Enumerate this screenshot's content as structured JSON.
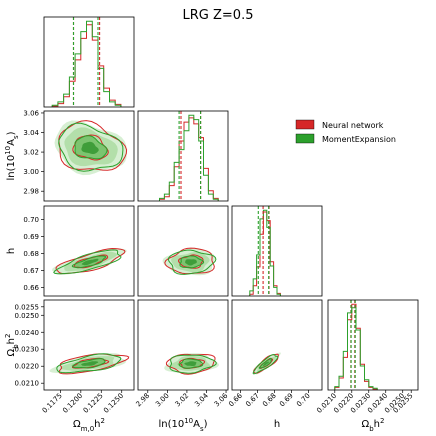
{
  "chart_data": {
    "type": "corner",
    "title": "LRG Z=0.5",
    "legend": {
      "placement": "top-right",
      "entries": [
        {
          "name": "Neural network",
          "color": "#d62728"
        },
        {
          "name": "MomentExpansion",
          "color": "#2ca02c"
        }
      ]
    },
    "parameters": [
      {
        "key": "omch2",
        "label": "Ωm,0h²",
        "label_html": "Ω<tspan baseline-shift=\"sub\" font-size=\"7\">m,0</tspan>h<tspan baseline-shift=\"super\" font-size=\"7\">2</tspan>",
        "range": [
          0.1155,
          0.1265
        ],
        "ticks": [
          0.1175,
          0.12,
          0.1225,
          0.125
        ],
        "tick_labels": [
          "0.1175",
          "0.1200",
          "0.1225",
          "0.1250"
        ],
        "mean": 0.1211,
        "sigma": 0.0017,
        "vlines": {
          "nn": [
            0.1191,
            0.1223
          ],
          "me": [
            0.1191,
            0.1221
          ]
        }
      },
      {
        "key": "lnAs",
        "label": "ln(10¹⁰As)",
        "label_html": "ln(10<tspan baseline-shift=\"super\" font-size=\"7\">10</tspan>A<tspan baseline-shift=\"sub\" font-size=\"7\">s</tspan>)",
        "range": [
          2.97,
          3.062
        ],
        "ticks": [
          2.98,
          3.0,
          3.02,
          3.04,
          3.06
        ],
        "tick_labels": [
          "2.98",
          "3.00",
          "3.02",
          "3.04",
          "3.06"
        ],
        "mean": 3.024,
        "sigma": 0.01,
        "vlines": {
          "nn": [
            3.014,
            3.034
          ],
          "me": [
            3.012,
            3.034
          ]
        }
      },
      {
        "key": "h",
        "label": "h",
        "label_html": "h",
        "range": [
          0.655,
          0.708
        ],
        "ticks": [
          0.66,
          0.67,
          0.68,
          0.69,
          0.7
        ],
        "tick_labels": [
          "0.66",
          "0.67",
          "0.68",
          "0.69",
          "0.70"
        ],
        "mean": 0.675,
        "sigma": 0.003,
        "vlines": {
          "nn": [
            0.6733,
            0.6768
          ],
          "me": [
            0.6705,
            0.6766
          ]
        }
      },
      {
        "key": "obh2",
        "label": "Ωbh²",
        "label_html": "Ω<tspan baseline-shift=\"sub\" font-size=\"7\">b</tspan>h<tspan baseline-shift=\"super\" font-size=\"7\">2</tspan>",
        "range": [
          0.0206,
          0.0259
        ],
        "ticks": [
          0.021,
          0.0215,
          0.022,
          0.0225,
          0.023,
          0.0235,
          0.024,
          0.0245,
          0.025,
          0.0255
        ],
        "tick_labels": [
          "0.0210",
          "0.0215",
          "0.0220",
          "0.0225",
          "0.0230",
          "0.0235",
          "0.0240",
          "0.0245",
          "0.0250",
          "0.0255"
        ],
        "shown_tick_labels": [
          0,
          2,
          4,
          6,
          8,
          9
        ],
        "mean": 0.02215,
        "sigma": 0.00023,
        "vlines": {
          "nn": [
            0.02195,
            0.02218
          ],
          "me": [
            0.02196,
            0.0222
          ]
        }
      }
    ],
    "histograms": [
      {
        "param": "omch2",
        "bins": [
          0.1165,
          0.1172,
          0.1179,
          0.1186,
          0.1193,
          0.12,
          0.1207,
          0.1214,
          0.1221,
          0.1228,
          0.1235,
          0.1242,
          0.1249
        ],
        "nn": [
          1,
          4,
          12,
          30,
          55,
          80,
          96,
          78,
          48,
          22,
          8,
          3
        ],
        "me": [
          2,
          6,
          15,
          35,
          62,
          88,
          100,
          82,
          45,
          18,
          6,
          2
        ]
      },
      {
        "param": "lnAs",
        "bins": [
          2.992,
          2.997,
          3.002,
          3.007,
          3.012,
          3.017,
          3.022,
          3.027,
          3.032,
          3.037,
          3.042,
          3.047,
          3.052
        ],
        "nn": [
          2,
          5,
          18,
          40,
          70,
          92,
          97,
          90,
          74,
          38,
          12,
          3
        ],
        "me": [
          3,
          8,
          22,
          45,
          60,
          82,
          100,
          95,
          70,
          30,
          8,
          2
        ]
      },
      {
        "param": "h",
        "bins": [
          0.6655,
          0.6675,
          0.6695,
          0.6715,
          0.6735,
          0.6755,
          0.6775,
          0.6795,
          0.6815,
          0.6835
        ],
        "nn": [
          2,
          12,
          34,
          72,
          98,
          88,
          40,
          12,
          3
        ],
        "me": [
          6,
          20,
          48,
          90,
          100,
          80,
          35,
          10,
          2
        ]
      },
      {
        "param": "obh2",
        "bins": [
          0.021,
          0.02125,
          0.0215,
          0.02175,
          0.022,
          0.02225,
          0.0225,
          0.02275,
          0.023,
          0.02325,
          0.0235
        ],
        "nn": [
          3,
          14,
          38,
          82,
          100,
          72,
          30,
          10,
          3,
          1
        ],
        "me": [
          4,
          16,
          45,
          90,
          96,
          70,
          28,
          12,
          4,
          2
        ]
      }
    ],
    "contours": [
      {
        "row": "lnAs",
        "col": "omch2",
        "corr": -0.2
      },
      {
        "row": "h",
        "col": "omch2",
        "corr": 0.75
      },
      {
        "row": "h",
        "col": "lnAs",
        "corr": 0.05
      },
      {
        "row": "obh2",
        "col": "omch2",
        "corr": 0.55
      },
      {
        "row": "obh2",
        "col": "lnAs",
        "corr": 0.1
      },
      {
        "row": "obh2",
        "col": "h",
        "corr": 0.85
      }
    ],
    "grid": false
  }
}
